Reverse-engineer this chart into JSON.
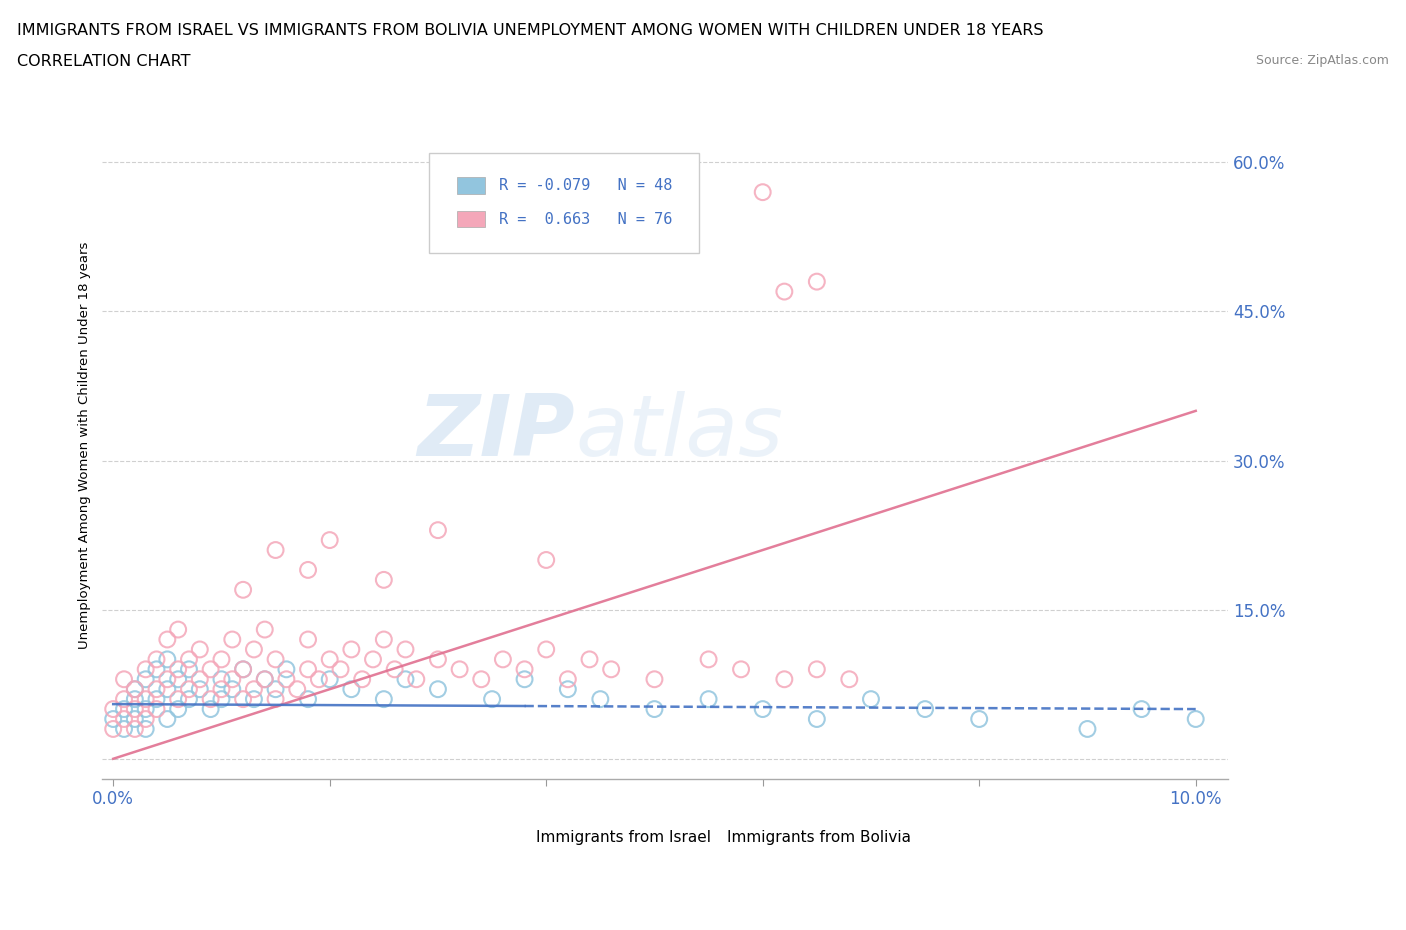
{
  "title_line1": "IMMIGRANTS FROM ISRAEL VS IMMIGRANTS FROM BOLIVIA UNEMPLOYMENT AMONG WOMEN WITH CHILDREN UNDER 18 YEARS",
  "title_line2": "CORRELATION CHART",
  "source_text": "Source: ZipAtlas.com",
  "ylabel_label": "Unemployment Among Women with Children Under 18 years",
  "israel_R": -0.079,
  "israel_N": 48,
  "bolivia_R": 0.663,
  "bolivia_N": 76,
  "israel_color": "#92C5DE",
  "bolivia_color": "#F4A7B9",
  "israel_trend_color": "#4472C4",
  "bolivia_trend_color": "#E07090",
  "legend_label_israel": "Immigrants from Israel",
  "legend_label_bolivia": "Immigrants from Bolivia",
  "background_color": "#FFFFFF",
  "watermark_zip": "ZIP",
  "watermark_atlas": "atlas",
  "tick_color": "#4472C4",
  "tick_fontsize": 12,
  "ylabel_ticks": [
    0.0,
    0.15,
    0.3,
    0.45,
    0.6
  ],
  "ylabel_tick_labels": [
    "",
    "15.0%",
    "30.0%",
    "45.0%",
    "60.0%"
  ],
  "xlim": [
    -0.001,
    0.103
  ],
  "ylim": [
    -0.02,
    0.65
  ],
  "israel_x": [
    0.0,
    0.001,
    0.001,
    0.002,
    0.002,
    0.002,
    0.003,
    0.003,
    0.003,
    0.004,
    0.004,
    0.005,
    0.005,
    0.005,
    0.006,
    0.006,
    0.007,
    0.007,
    0.008,
    0.009,
    0.01,
    0.01,
    0.011,
    0.012,
    0.013,
    0.014,
    0.015,
    0.016,
    0.018,
    0.02,
    0.022,
    0.025,
    0.027,
    0.03,
    0.035,
    0.038,
    0.042,
    0.045,
    0.05,
    0.055,
    0.06,
    0.065,
    0.07,
    0.075,
    0.08,
    0.09,
    0.095,
    0.1
  ],
  "israel_y": [
    0.04,
    0.05,
    0.03,
    0.06,
    0.04,
    0.07,
    0.05,
    0.08,
    0.03,
    0.06,
    0.09,
    0.04,
    0.07,
    0.1,
    0.05,
    0.08,
    0.06,
    0.09,
    0.07,
    0.05,
    0.08,
    0.06,
    0.07,
    0.09,
    0.06,
    0.08,
    0.07,
    0.09,
    0.06,
    0.08,
    0.07,
    0.06,
    0.08,
    0.07,
    0.06,
    0.08,
    0.07,
    0.06,
    0.05,
    0.06,
    0.05,
    0.04,
    0.06,
    0.05,
    0.04,
    0.03,
    0.05,
    0.04
  ],
  "bolivia_x": [
    0.0,
    0.0,
    0.001,
    0.001,
    0.001,
    0.002,
    0.002,
    0.002,
    0.003,
    0.003,
    0.003,
    0.004,
    0.004,
    0.004,
    0.005,
    0.005,
    0.006,
    0.006,
    0.006,
    0.007,
    0.007,
    0.008,
    0.008,
    0.009,
    0.009,
    0.01,
    0.01,
    0.011,
    0.011,
    0.012,
    0.012,
    0.013,
    0.013,
    0.014,
    0.014,
    0.015,
    0.015,
    0.016,
    0.017,
    0.018,
    0.018,
    0.019,
    0.02,
    0.021,
    0.022,
    0.023,
    0.024,
    0.025,
    0.026,
    0.027,
    0.028,
    0.03,
    0.032,
    0.034,
    0.036,
    0.038,
    0.04,
    0.042,
    0.044,
    0.046,
    0.05,
    0.055,
    0.058,
    0.062,
    0.065,
    0.068,
    0.04,
    0.03,
    0.025,
    0.02,
    0.018,
    0.015,
    0.012,
    0.06,
    0.062,
    0.065
  ],
  "bolivia_y": [
    0.05,
    0.03,
    0.06,
    0.04,
    0.08,
    0.05,
    0.07,
    0.03,
    0.06,
    0.09,
    0.04,
    0.07,
    0.1,
    0.05,
    0.08,
    0.12,
    0.06,
    0.09,
    0.13,
    0.07,
    0.1,
    0.08,
    0.11,
    0.06,
    0.09,
    0.07,
    0.1,
    0.08,
    0.12,
    0.06,
    0.09,
    0.07,
    0.11,
    0.08,
    0.13,
    0.06,
    0.1,
    0.08,
    0.07,
    0.09,
    0.12,
    0.08,
    0.1,
    0.09,
    0.11,
    0.08,
    0.1,
    0.12,
    0.09,
    0.11,
    0.08,
    0.1,
    0.09,
    0.08,
    0.1,
    0.09,
    0.11,
    0.08,
    0.1,
    0.09,
    0.08,
    0.1,
    0.09,
    0.08,
    0.09,
    0.08,
    0.2,
    0.23,
    0.18,
    0.22,
    0.19,
    0.21,
    0.17,
    0.57,
    0.47,
    0.48
  ]
}
